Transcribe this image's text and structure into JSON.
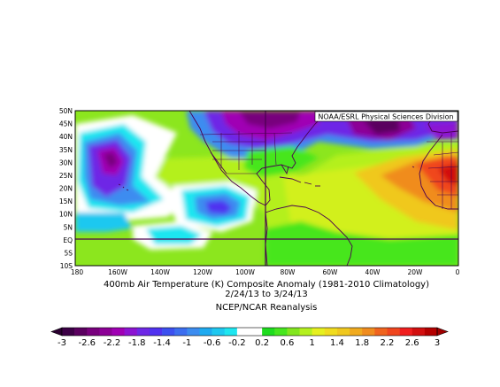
{
  "map": {
    "title_line1": "400mb Air Temperature (K) Composite Anomaly (1981-2010 Climatology)",
    "title_line2": "2/24/13  to 3/24/13",
    "title_line3": "NCEP/NCAR Reanalysis",
    "credit": "NOAA/ESRL Physical Sciences Division",
    "lat_labels": [
      "50N",
      "45N",
      "40N",
      "35N",
      "30N",
      "25N",
      "20N",
      "15N",
      "10N",
      "5N",
      "EQ",
      "5S",
      "10S"
    ],
    "lon_labels": [
      "180",
      "160W",
      "140W",
      "120W",
      "100W",
      "80W",
      "60W",
      "40W",
      "20W",
      "0"
    ],
    "extent": {
      "lon_min": -180,
      "lon_max": 0,
      "lat_min": -10,
      "lat_max": 50
    }
  },
  "colorbar": {
    "labels": [
      "-3",
      "-2.6",
      "-2.2",
      "-1.8",
      "-1.4",
      "-1",
      "-0.6",
      "-0.2",
      "0.2",
      "0.6",
      "1",
      "1.4",
      "1.8",
      "2.2",
      "2.6",
      "3"
    ],
    "colors": [
      "#3c0046",
      "#5a005f",
      "#78007d",
      "#8c0096",
      "#a000b4",
      "#8c14d2",
      "#6e28e6",
      "#5032f0",
      "#3c50f0",
      "#3c6ef0",
      "#3c8cf0",
      "#1eaaf0",
      "#1ec8f0",
      "#1ee6f0",
      "#ffffff",
      "#ffffff",
      "#1edc1e",
      "#46e61e",
      "#82e61e",
      "#b4f01e",
      "#e6f01e",
      "#f0dc1e",
      "#f0c81e",
      "#f0aa1e",
      "#f08c1e",
      "#f0641e",
      "#f0461e",
      "#f01e1e",
      "#d20f0f",
      "#b40000"
    ]
  }
}
